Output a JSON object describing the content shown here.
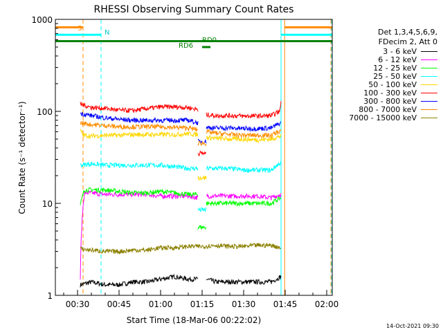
{
  "chart_data": {
    "type": "line",
    "title": "RHESSI Observing Summary Count Rates",
    "xlabel": "Start Time (18-Mar-06 00:22:02)",
    "ylabel": "Count Rate (s⁻¹ detector⁻¹)",
    "yscale": "log",
    "ylim": [
      1,
      1000
    ],
    "xlim_minutes": [
      22,
      122
    ],
    "x_ticks": [
      {
        "m": 30,
        "label": "00:30"
      },
      {
        "m": 45,
        "label": "00:45"
      },
      {
        "m": 60,
        "label": "01:00"
      },
      {
        "m": 75,
        "label": "01:15"
      },
      {
        "m": 90,
        "label": "01:30"
      },
      {
        "m": 105,
        "label": "01:45"
      },
      {
        "m": 120,
        "label": "02:00"
      }
    ],
    "y_ticks": [
      {
        "v": 1,
        "label": "1"
      },
      {
        "v": 10,
        "label": "10"
      },
      {
        "v": 100,
        "label": "100"
      },
      {
        "v": 1000,
        "label": "1000"
      }
    ],
    "legend_header": [
      "Det 1,3,4,5,6,9,",
      "FDecim 2, Att 0"
    ],
    "series": [
      {
        "name": "3 - 6 keV",
        "color": "#000000",
        "segments": [
          {
            "x": [
              31,
              35,
              40,
              45,
              50,
              55,
              60,
              65,
              70,
              73.5
            ],
            "y": [
              1.3,
              1.4,
              1.3,
              1.3,
              1.4,
              1.4,
              1.5,
              1.6,
              1.5,
              1.5
            ]
          },
          {
            "x": [
              76.5,
              80,
              85,
              90,
              95,
              100,
              103.5
            ],
            "y": [
              1.5,
              1.4,
              1.4,
              1.4,
              1.4,
              1.4,
              1.6
            ]
          }
        ]
      },
      {
        "name": "6 - 12 keV",
        "color": "#ff00ff",
        "segments": [
          {
            "x": [
              31,
              32.5,
              35,
              40,
              45,
              50,
              55,
              60,
              65,
              70,
              73.5
            ],
            "y": [
              1.5,
              13,
              13,
              12.5,
              12.5,
              12.5,
              12.5,
              12,
              12,
              12,
              11.5
            ]
          },
          {
            "x": [
              76.5,
              80,
              85,
              90,
              95,
              100,
              103.5
            ],
            "y": [
              12,
              12,
              12,
              12,
              12,
              11.5,
              12.5
            ]
          }
        ]
      },
      {
        "name": "12 - 25 keV",
        "color": "#00ff00",
        "segments": [
          {
            "x": [
              31,
              32.5,
              35,
              40,
              45,
              50,
              55,
              60,
              65,
              70,
              73.5
            ],
            "y": [
              9.5,
              14,
              14,
              14,
              13.5,
              13,
              13,
              13.5,
              13,
              12.5,
              12.5
            ]
          },
          {
            "x": [
              73.5,
              76.5
            ],
            "y": [
              5.5,
              5.5
            ]
          },
          {
            "x": [
              76.5,
              80,
              85,
              90,
              95,
              100,
              103.5
            ],
            "y": [
              10,
              10,
              10,
              10,
              10,
              10,
              11.5
            ]
          }
        ]
      },
      {
        "name": "25 - 50 keV",
        "color": "#00ffff",
        "segments": [
          {
            "x": [
              31,
              35,
              40,
              45,
              50,
              55,
              60,
              65,
              70,
              73.5
            ],
            "y": [
              26,
              27,
              26,
              26,
              26,
              26,
              26,
              25,
              24,
              24
            ]
          },
          {
            "x": [
              73.5,
              76.5
            ],
            "y": [
              8.5,
              8.5
            ]
          },
          {
            "x": [
              76.5,
              80,
              85,
              90,
              95,
              100,
              103.5
            ],
            "y": [
              24,
              24,
              24,
              23,
              23,
              23,
              28
            ]
          }
        ]
      },
      {
        "name": "50 - 100 keV",
        "color": "#ffd700",
        "segments": [
          {
            "x": [
              31,
              32,
              35,
              40,
              45,
              50,
              55,
              60,
              65,
              70,
              73.5
            ],
            "y": [
              63,
              55,
              54,
              55,
              55,
              56,
              56,
              56,
              56,
              57,
              56
            ]
          },
          {
            "x": [
              73.5,
              76.5
            ],
            "y": [
              19,
              19
            ]
          },
          {
            "x": [
              76.5,
              80,
              85,
              90,
              95,
              100,
              103.5
            ],
            "y": [
              52,
              51,
              50,
              50,
              49,
              50,
              54
            ]
          }
        ]
      },
      {
        "name": "100 - 300 keV",
        "color": "#ff0000",
        "segments": [
          {
            "x": [
              31,
              35,
              40,
              45,
              50,
              55,
              60,
              65,
              70,
              73.5
            ],
            "y": [
              120,
              110,
              108,
              103,
              102,
              107,
              112,
              112,
              110,
              105
            ]
          },
          {
            "x": [
              73.5,
              76.5
            ],
            "y": [
              35,
              35
            ]
          },
          {
            "x": [
              76.5,
              80,
              85,
              90,
              95,
              100,
              103,
              103.5
            ],
            "y": [
              92,
              90,
              90,
              89,
              89,
              90,
              100,
              130
            ]
          }
        ]
      },
      {
        "name": "300 - 800 keV",
        "color": "#0000ff",
        "segments": [
          {
            "x": [
              31,
              35,
              40,
              45,
              50,
              55,
              60,
              65,
              70,
              73.5
            ],
            "y": [
              95,
              90,
              85,
              82,
              80,
              80,
              80,
              80,
              80,
              75
            ]
          },
          {
            "x": [
              73.5,
              76.5
            ],
            "y": [
              47,
              47
            ]
          },
          {
            "x": [
              76.5,
              80,
              85,
              90,
              95,
              100,
              103.5
            ],
            "y": [
              67,
              66,
              66,
              65,
              65,
              66,
              75
            ]
          }
        ]
      },
      {
        "name": "800 - 7000 keV",
        "color": "#ff8c00",
        "segments": [
          {
            "x": [
              31,
              35,
              40,
              45,
              50,
              55,
              60,
              65,
              70,
              73.5
            ],
            "y": [
              75,
              72,
              70,
              68,
              68,
              68,
              68,
              67,
              66,
              63
            ]
          },
          {
            "x": [
              73.5,
              76.5
            ],
            "y": [
              45,
              45
            ]
          },
          {
            "x": [
              76.5,
              80,
              85,
              90,
              95,
              100,
              103.5
            ],
            "y": [
              60,
              58,
              56,
              55,
              55,
              55,
              62
            ]
          }
        ]
      },
      {
        "name": "7000 - 15000 keV",
        "color": "#8b8000",
        "segments": [
          {
            "x": [
              31,
              35,
              40,
              45,
              50,
              55,
              60,
              65,
              70,
              75,
              80,
              85,
              90,
              95,
              100,
              103.5
            ],
            "y": [
              3.2,
              3.1,
              3.0,
              3.0,
              3.1,
              3.1,
              3.3,
              3.3,
              3.4,
              3.4,
              3.5,
              3.4,
              3.4,
              3.5,
              3.5,
              3.3
            ]
          }
        ]
      }
    ],
    "annotations": {
      "saa_label": "S",
      "night_label": "N",
      "rd0_label": "RD0",
      "rd6_label": "RD6"
    },
    "vertical_lines": [
      {
        "m": 22,
        "color": "#00ffff",
        "style": "solid"
      },
      {
        "m": 32,
        "color": "#ff8c00",
        "style": "dash"
      },
      {
        "m": 38.5,
        "color": "#00ffff",
        "style": "dash"
      },
      {
        "m": 103.5,
        "color": "#00ffff",
        "style": "solid"
      },
      {
        "m": 104.8,
        "color": "#ff8c00",
        "style": "solid"
      },
      {
        "m": 121.5,
        "color": "#ff8c00",
        "style": "dash"
      },
      {
        "m": 121.8,
        "color": "#00ffff",
        "style": "dash"
      }
    ],
    "bars": [
      {
        "label_key": "saa",
        "color": "#ff8c00",
        "y": 820,
        "ranges": [
          [
            22,
            32
          ],
          [
            104.8,
            122
          ]
        ]
      },
      {
        "label_key": "night",
        "color": "#00ffff",
        "y": 680,
        "ranges": [
          [
            22,
            38.5
          ],
          [
            103.5,
            122
          ]
        ]
      },
      {
        "label_key": "rd0",
        "color": "#008000",
        "y": 580,
        "ranges": [
          [
            22,
            122
          ]
        ]
      },
      {
        "label_key": "rd6",
        "color": "#008000",
        "y": 500,
        "ranges": [
          [
            75,
            78
          ]
        ]
      }
    ]
  },
  "footer": {
    "generated": "14-Oct-2021 09:30"
  }
}
